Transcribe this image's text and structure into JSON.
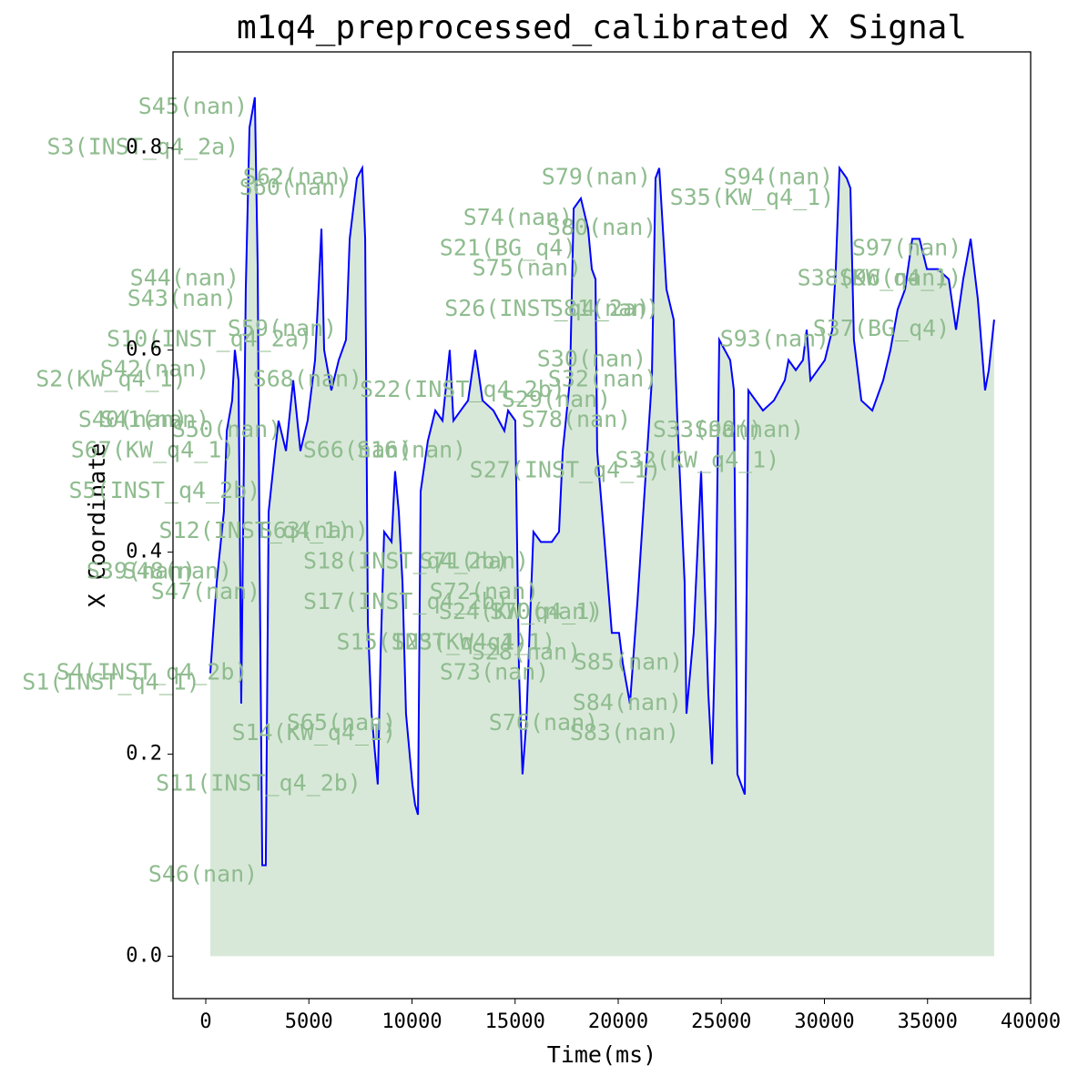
{
  "chart_data": {
    "type": "line",
    "title": "m1q4_preprocessed_calibrated X Signal",
    "xlabel": "Time(ms)",
    "ylabel": "X Coordinate",
    "xlim": [
      -1589,
      40000
    ],
    "ylim": [
      -0.042,
      0.895
    ],
    "xticks": [
      0,
      5000,
      10000,
      15000,
      20000,
      25000,
      30000,
      35000,
      40000
    ],
    "yticks": [
      {
        "value": 0,
        "label": "0.0"
      },
      0.2,
      0.4,
      0.6,
      0.8
    ],
    "grid": false,
    "x": [
      220,
      530,
      880,
      1020,
      1280,
      1410,
      1590,
      1720,
      1940,
      2120,
      2380,
      2520,
      2600,
      2740,
      2910,
      3050,
      3360,
      3530,
      3890,
      4240,
      4590,
      4940,
      5300,
      5470,
      5610,
      5740,
      6090,
      6450,
      6800,
      6980,
      7330,
      7590,
      7730,
      7860,
      8040,
      8340,
      8480,
      8650,
      9010,
      9180,
      9360,
      9540,
      9710,
      10020,
      10150,
      10290,
      10420,
      10770,
      11130,
      11480,
      11830,
      12010,
      12360,
      12720,
      13070,
      13420,
      13950,
      14480,
      14660,
      15010,
      15190,
      15360,
      15540,
      15720,
      15890,
      16250,
      16780,
      17130,
      17310,
      17660,
      17840,
      18190,
      18540,
      18720,
      18900,
      18980,
      19340,
      19690,
      20040,
      20220,
      20570,
      20930,
      21280,
      21630,
      21810,
      21990,
      22340,
      22690,
      22870,
      23220,
      23310,
      23660,
      24020,
      24370,
      24550,
      24720,
      24900,
      25430,
      25610,
      25780,
      26140,
      26310,
      27020,
      27550,
      28080,
      28260,
      28610,
      28960,
      29140,
      29320,
      30020,
      30380,
      30550,
      30730,
      31080,
      31260,
      31430,
      31790,
      32320,
      32850,
      33200,
      33550,
      33910,
      34260,
      34610,
      34970,
      35500,
      36030,
      36380,
      36730,
      37090,
      37440,
      37790,
      37970,
      38230
    ],
    "series": [
      {
        "name": "X",
        "color": "#0000ff",
        "fill_color": "#8fbc8f",
        "values": [
          0.28,
          0.37,
          0.44,
          0.52,
          0.55,
          0.6,
          0.57,
          0.25,
          0.66,
          0.82,
          0.85,
          0.68,
          0.42,
          0.09,
          0.09,
          0.44,
          0.5,
          0.53,
          0.5,
          0.57,
          0.5,
          0.53,
          0.59,
          0.66,
          0.72,
          0.6,
          0.56,
          0.59,
          0.61,
          0.71,
          0.77,
          0.78,
          0.71,
          0.33,
          0.24,
          0.17,
          0.3,
          0.42,
          0.41,
          0.48,
          0.44,
          0.37,
          0.24,
          0.17,
          0.15,
          0.14,
          0.46,
          0.51,
          0.54,
          0.53,
          0.6,
          0.53,
          0.54,
          0.55,
          0.6,
          0.55,
          0.54,
          0.52,
          0.54,
          0.53,
          0.28,
          0.18,
          0.23,
          0.33,
          0.42,
          0.41,
          0.41,
          0.42,
          0.5,
          0.57,
          0.74,
          0.75,
          0.72,
          0.68,
          0.67,
          0.5,
          0.41,
          0.32,
          0.32,
          0.29,
          0.25,
          0.35,
          0.46,
          0.57,
          0.77,
          0.78,
          0.66,
          0.63,
          0.53,
          0.37,
          0.24,
          0.32,
          0.48,
          0.26,
          0.19,
          0.33,
          0.61,
          0.59,
          0.56,
          0.18,
          0.16,
          0.56,
          0.54,
          0.55,
          0.57,
          0.59,
          0.58,
          0.59,
          0.62,
          0.57,
          0.59,
          0.62,
          0.68,
          0.78,
          0.77,
          0.76,
          0.61,
          0.55,
          0.54,
          0.57,
          0.6,
          0.64,
          0.66,
          0.71,
          0.71,
          0.68,
          0.68,
          0.67,
          0.62,
          0.67,
          0.71,
          0.65,
          0.56,
          0.58,
          0.63
        ]
      }
    ],
    "annotations": [
      {
        "text": "S45(nan)",
        "x": -620,
        "y": 0.84
      },
      {
        "text": "S3(INST_q4_2a)",
        "x": -3050,
        "y": 0.8
      },
      {
        "text": "S62(nan)",
        "x": 4460,
        "y": 0.77
      },
      {
        "text": "S60(nan)",
        "x": 4280,
        "y": 0.76
      },
      {
        "text": "S79(nan)",
        "x": 18940,
        "y": 0.77
      },
      {
        "text": "S94(nan)",
        "x": 27770,
        "y": 0.77
      },
      {
        "text": "S35(KW_q4_1)",
        "x": 26490,
        "y": 0.75
      },
      {
        "text": "S74(nan)",
        "x": 15140,
        "y": 0.73
      },
      {
        "text": "S80(nan)",
        "x": 19210,
        "y": 0.72
      },
      {
        "text": "S21(BG_q4)",
        "x": 14660,
        "y": 0.7
      },
      {
        "text": "S97(nan)",
        "x": 34000,
        "y": 0.7
      },
      {
        "text": "S75(nan)",
        "x": 15580,
        "y": 0.68
      },
      {
        "text": "S44(nan)",
        "x": -1020,
        "y": 0.67
      },
      {
        "text": "S38(KW_q4_1)",
        "x": 32670,
        "y": 0.67
      },
      {
        "text": "S96(nan)",
        "x": 33380,
        "y": 0.67
      },
      {
        "text": "S43(nan)",
        "x": -1150,
        "y": 0.65
      },
      {
        "text": "S26(INST_q4_2a)",
        "x": 16560,
        "y": 0.64
      },
      {
        "text": "S81(nan)",
        "x": 19340,
        "y": 0.64
      },
      {
        "text": "S37(BG_q4)",
        "x": 32760,
        "y": 0.62
      },
      {
        "text": "S10(INST_q4_2a)",
        "x": 180,
        "y": 0.61
      },
      {
        "text": "S59(nan)",
        "x": 3710,
        "y": 0.62
      },
      {
        "text": "S93(nan)",
        "x": 27590,
        "y": 0.61
      },
      {
        "text": "S42(nan)",
        "x": -2470,
        "y": 0.58
      },
      {
        "text": "S2(KW_q4_1)",
        "x": -4590,
        "y": 0.57
      },
      {
        "text": "S22(INST_q4_2b)",
        "x": 12450,
        "y": 0.56
      },
      {
        "text": "S30(nan)",
        "x": 18720,
        "y": 0.59
      },
      {
        "text": "S32(nan)",
        "x": 19250,
        "y": 0.57
      },
      {
        "text": "S68(nan)",
        "x": 4940,
        "y": 0.57
      },
      {
        "text": "S29(nan)",
        "x": 17000,
        "y": 0.55
      },
      {
        "text": "S78(nan)",
        "x": 17970,
        "y": 0.53
      },
      {
        "text": "S40(nan)",
        "x": -3530,
        "y": 0.53
      },
      {
        "text": "S41(nan)",
        "x": -2470,
        "y": 0.53
      },
      {
        "text": "S50(nan)",
        "x": 1020,
        "y": 0.52
      },
      {
        "text": "S33(nan)",
        "x": 24330,
        "y": 0.52
      },
      {
        "text": "S90(nan)",
        "x": 26360,
        "y": 0.52
      },
      {
        "text": "S27(INST_q4_1)",
        "x": 17440,
        "y": 0.48
      },
      {
        "text": "S32(KW_q4_1)",
        "x": 23840,
        "y": 0.49
      },
      {
        "text": "S67(KW_q4_1)",
        "x": -2560,
        "y": 0.5
      },
      {
        "text": "S66(nan)",
        "x": 7370,
        "y": 0.5
      },
      {
        "text": "S16(nan)",
        "x": 9980,
        "y": 0.5
      },
      {
        "text": "S5(INST_q4_2b)",
        "x": -1990,
        "y": 0.46
      },
      {
        "text": "S12(INST_q4_1)",
        "x": 2380,
        "y": 0.42
      },
      {
        "text": "S63(nan)",
        "x": 5250,
        "y": 0.42
      },
      {
        "text": "S18(INST_q4_2b)",
        "x": 9710,
        "y": 0.39
      },
      {
        "text": "S71(nan)",
        "x": 13020,
        "y": 0.39
      },
      {
        "text": "S48(nan)",
        "x": -1370,
        "y": 0.38
      },
      {
        "text": "S39(nan)",
        "x": -3130,
        "y": 0.38
      },
      {
        "text": "S72(nan)",
        "x": 13510,
        "y": 0.36
      },
      {
        "text": "S47(nan)",
        "x": 0,
        "y": 0.36
      },
      {
        "text": "S17(INST_q4_2b)",
        "x": 9710,
        "y": 0.35
      },
      {
        "text": "S24(KW_q4_1)",
        "x": 15280,
        "y": 0.34
      },
      {
        "text": "S70(nan)",
        "x": 16420,
        "y": 0.34
      },
      {
        "text": "S15(INST_q4_1)",
        "x": 10990,
        "y": 0.31
      },
      {
        "text": "S23(KW_q4_1)",
        "x": 12980,
        "y": 0.31
      },
      {
        "text": "S28(nan)",
        "x": 15540,
        "y": 0.3
      },
      {
        "text": "S85(nan)",
        "x": 20490,
        "y": 0.29
      },
      {
        "text": "S4(INST_q4_2b)",
        "x": -2600,
        "y": 0.28
      },
      {
        "text": "S73(nan)",
        "x": 14000,
        "y": 0.28
      },
      {
        "text": "S1(INST_q4_1)",
        "x": -4590,
        "y": 0.27
      },
      {
        "text": "S84(nan)",
        "x": 20440,
        "y": 0.25
      },
      {
        "text": "S65(nan)",
        "x": 6580,
        "y": 0.23
      },
      {
        "text": "S14(KW_q4_1)",
        "x": 5250,
        "y": 0.22
      },
      {
        "text": "S76(nan)",
        "x": 16380,
        "y": 0.23
      },
      {
        "text": "S83(nan)",
        "x": 20310,
        "y": 0.22
      },
      {
        "text": "S11(INST_q4_2b)",
        "x": 2560,
        "y": 0.17
      },
      {
        "text": "S46(nan)",
        "x": -130,
        "y": 0.08
      }
    ]
  }
}
